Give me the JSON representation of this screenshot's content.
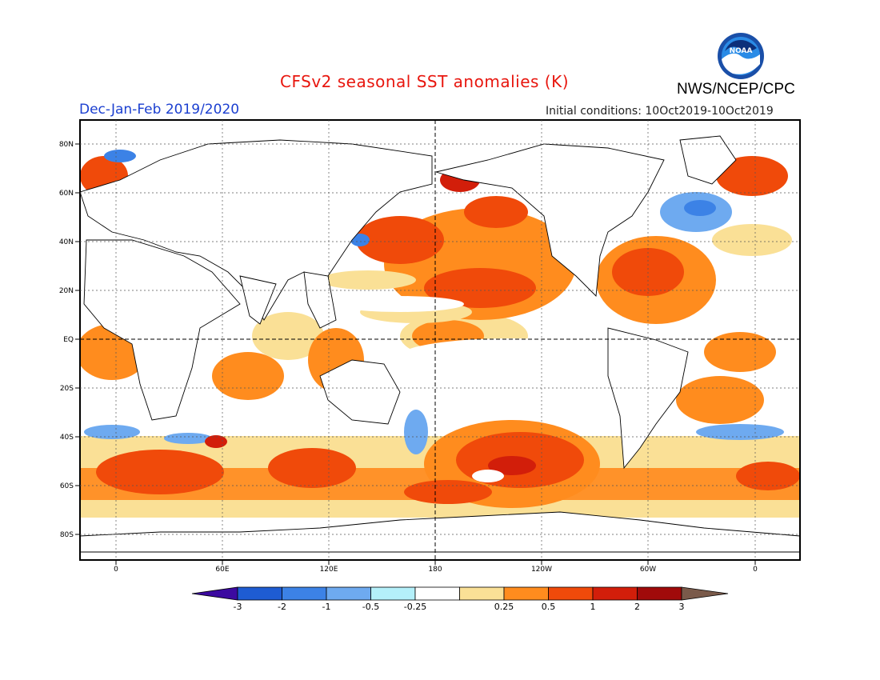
{
  "header": {
    "title": "CFSv2 seasonal SST anomalies (K)",
    "subtitle": "Dec-Jan-Feb 2019/2020",
    "initial_conditions": "Initial conditions: 10Oct2019-10Oct2019",
    "agency": "NWS/NCEP/CPC",
    "logo_text": "NOAA"
  },
  "map": {
    "lat_labels": [
      "80N",
      "60N",
      "40N",
      "20N",
      "EQ",
      "20S",
      "40S",
      "60S",
      "80S"
    ],
    "lon_labels": [
      "0",
      "60E",
      "120E",
      "180",
      "120W",
      "60W",
      "0"
    ]
  },
  "colorbar": {
    "labels": [
      "-3",
      "-2",
      "-1",
      "-0.5",
      "-0.25",
      "0.25",
      "0.5",
      "1",
      "2",
      "3"
    ],
    "colors": [
      "#3c0aa0",
      "#1e5cd2",
      "#3c82e6",
      "#6eaaf0",
      "#b4f0fa",
      "#ffffff",
      "#fae096",
      "#ff8c1e",
      "#f04a0a",
      "#d21e0a",
      "#a00a0a",
      "#7a5a4a"
    ]
  }
}
